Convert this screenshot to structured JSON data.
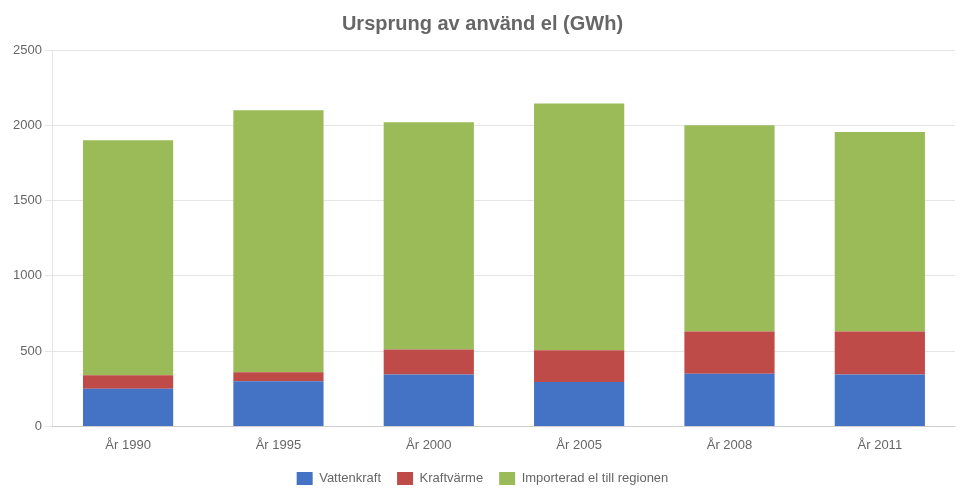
{
  "chart_data": {
    "type": "bar",
    "title": "Ursprung av använd el (GWh)",
    "categories": [
      "År 1990",
      "År 1995",
      "År 2000",
      "År 2005",
      "År 2008",
      "År 2011"
    ],
    "series": [
      {
        "name": "Vattenkraft",
        "color": "#4472C4",
        "values": [
          250,
          300,
          345,
          295,
          350,
          345
        ]
      },
      {
        "name": "Kraftvärme",
        "color": "#BE4B48",
        "values": [
          90,
          60,
          165,
          210,
          280,
          285
        ]
      },
      {
        "name": "Importerad el till regionen",
        "color": "#9BBB59",
        "values": [
          1560,
          1740,
          1510,
          1640,
          1370,
          1325
        ]
      }
    ],
    "stacked": true,
    "ylim": [
      0,
      2500
    ],
    "yticks": [
      0,
      500,
      1000,
      1500,
      2000,
      2500
    ],
    "grid": true,
    "legend": "bottom"
  }
}
